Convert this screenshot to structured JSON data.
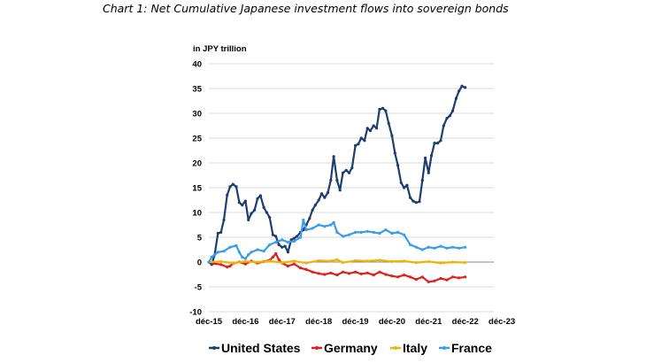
{
  "title": "Chart 1: Net Cumulative Japanese investment flows into sovereign bonds",
  "chart_data": {
    "type": "line",
    "title": "Chart 1: Net Cumulative Japanese investment flows into sovereign bonds",
    "ylabel": "in JPY trillion",
    "xlabel": "",
    "ylim": [
      -10,
      40
    ],
    "yticks": [
      -10,
      -5,
      0,
      5,
      10,
      15,
      20,
      25,
      30,
      35,
      40
    ],
    "xlim": [
      2015.92,
      2023.7
    ],
    "xticks": [
      {
        "x": 2015.92,
        "label": "déc-15"
      },
      {
        "x": 2016.92,
        "label": "déc-16"
      },
      {
        "x": 2017.92,
        "label": "déc-17"
      },
      {
        "x": 2018.92,
        "label": "déc-18"
      },
      {
        "x": 2019.92,
        "label": "déc-19"
      },
      {
        "x": 2020.92,
        "label": "déc-20"
      },
      {
        "x": 2021.92,
        "label": "déc-21"
      },
      {
        "x": 2022.92,
        "label": "déc-22"
      },
      {
        "x": 2023.92,
        "label": "déc-23"
      }
    ],
    "grid": "horizontal",
    "legend_position": "bottom",
    "series": [
      {
        "name": "United States",
        "color": "#1f3d6e",
        "points": [
          [
            2015.92,
            0
          ],
          [
            2016.0,
            -0.5
          ],
          [
            2016.08,
            1.5
          ],
          [
            2016.17,
            5.8
          ],
          [
            2016.25,
            6.0
          ],
          [
            2016.33,
            8.5
          ],
          [
            2016.42,
            13.5
          ],
          [
            2016.5,
            15.2
          ],
          [
            2016.58,
            15.7
          ],
          [
            2016.67,
            15.2
          ],
          [
            2016.75,
            12.0
          ],
          [
            2016.83,
            11.5
          ],
          [
            2016.92,
            12.3
          ],
          [
            2017.0,
            8.5
          ],
          [
            2017.08,
            9.8
          ],
          [
            2017.17,
            10.5
          ],
          [
            2017.25,
            12.8
          ],
          [
            2017.33,
            13.4
          ],
          [
            2017.42,
            11.0
          ],
          [
            2017.5,
            10.0
          ],
          [
            2017.58,
            9.0
          ],
          [
            2017.67,
            5.5
          ],
          [
            2017.75,
            5.2
          ],
          [
            2017.83,
            3.5
          ],
          [
            2017.92,
            3.0
          ],
          [
            2018.0,
            3.2
          ],
          [
            2018.08,
            2.0
          ],
          [
            2018.17,
            4.5
          ],
          [
            2018.25,
            4.8
          ],
          [
            2018.33,
            5.2
          ],
          [
            2018.42,
            6.0
          ],
          [
            2018.5,
            6.5
          ],
          [
            2018.58,
            7.5
          ],
          [
            2018.67,
            8.8
          ],
          [
            2018.75,
            10.5
          ],
          [
            2018.83,
            11.5
          ],
          [
            2018.92,
            12.5
          ],
          [
            2019.0,
            13.8
          ],
          [
            2019.08,
            13.0
          ],
          [
            2019.17,
            14.0
          ],
          [
            2019.25,
            16.5
          ],
          [
            2019.33,
            21.3
          ],
          [
            2019.42,
            16.5
          ],
          [
            2019.5,
            14.5
          ],
          [
            2019.58,
            18.0
          ],
          [
            2019.67,
            18.5
          ],
          [
            2019.75,
            18.0
          ],
          [
            2019.83,
            19.0
          ],
          [
            2019.92,
            23.5
          ],
          [
            2020.0,
            23.8
          ],
          [
            2020.08,
            25.0
          ],
          [
            2020.17,
            24.5
          ],
          [
            2020.25,
            27.0
          ],
          [
            2020.33,
            26.5
          ],
          [
            2020.42,
            27.5
          ],
          [
            2020.5,
            27.0
          ],
          [
            2020.58,
            30.8
          ],
          [
            2020.67,
            31.0
          ],
          [
            2020.75,
            30.5
          ],
          [
            2020.83,
            28.0
          ],
          [
            2020.92,
            25.5
          ],
          [
            2021.0,
            22.0
          ],
          [
            2021.08,
            19.5
          ],
          [
            2021.17,
            16.0
          ],
          [
            2021.25,
            15.0
          ],
          [
            2021.33,
            15.5
          ],
          [
            2021.42,
            13.0
          ],
          [
            2021.5,
            12.3
          ],
          [
            2021.58,
            12.0
          ],
          [
            2021.67,
            12.2
          ],
          [
            2021.75,
            16.5
          ],
          [
            2021.83,
            21.0
          ],
          [
            2021.92,
            18.0
          ],
          [
            2022.0,
            21.5
          ],
          [
            2022.08,
            24.0
          ],
          [
            2022.17,
            24.0
          ],
          [
            2022.25,
            24.5
          ],
          [
            2022.33,
            27.5
          ],
          [
            2022.42,
            29.0
          ],
          [
            2022.5,
            29.5
          ],
          [
            2022.58,
            30.5
          ],
          [
            2022.67,
            33.0
          ],
          [
            2022.75,
            34.5
          ],
          [
            2022.83,
            35.5
          ],
          [
            2022.92,
            35.2
          ]
        ]
      },
      {
        "name": "Germany",
        "color": "#e02020",
        "points": [
          [
            2015.92,
            0
          ],
          [
            2016.08,
            -0.3
          ],
          [
            2016.25,
            -0.5
          ],
          [
            2016.42,
            -1.0
          ],
          [
            2016.5,
            -0.8
          ],
          [
            2016.58,
            -0.3
          ],
          [
            2016.75,
            0.0
          ],
          [
            2016.92,
            -0.4
          ],
          [
            2017.08,
            0.2
          ],
          [
            2017.25,
            -0.2
          ],
          [
            2017.42,
            0.1
          ],
          [
            2017.58,
            0.4
          ],
          [
            2017.67,
            1.0
          ],
          [
            2017.75,
            1.7
          ],
          [
            2017.83,
            0.5
          ],
          [
            2017.92,
            -0.2
          ],
          [
            2018.08,
            -0.8
          ],
          [
            2018.25,
            -0.4
          ],
          [
            2018.42,
            -1.2
          ],
          [
            2018.58,
            -1.5
          ],
          [
            2018.75,
            -2.0
          ],
          [
            2018.92,
            -2.3
          ],
          [
            2019.08,
            -2.5
          ],
          [
            2019.25,
            -2.2
          ],
          [
            2019.42,
            -2.6
          ],
          [
            2019.58,
            -2.0
          ],
          [
            2019.75,
            -2.3
          ],
          [
            2019.92,
            -2.0
          ],
          [
            2020.08,
            -2.4
          ],
          [
            2020.25,
            -2.2
          ],
          [
            2020.42,
            -2.6
          ],
          [
            2020.58,
            -2.0
          ],
          [
            2020.75,
            -2.5
          ],
          [
            2020.92,
            -2.8
          ],
          [
            2021.08,
            -3.0
          ],
          [
            2021.25,
            -2.6
          ],
          [
            2021.42,
            -3.0
          ],
          [
            2021.58,
            -3.5
          ],
          [
            2021.75,
            -3.0
          ],
          [
            2021.92,
            -4.0
          ],
          [
            2022.08,
            -3.8
          ],
          [
            2022.25,
            -3.3
          ],
          [
            2022.42,
            -3.6
          ],
          [
            2022.58,
            -3.0
          ],
          [
            2022.75,
            -3.2
          ],
          [
            2022.92,
            -3.0
          ]
        ]
      },
      {
        "name": "Italy",
        "color": "#f0b400",
        "points": [
          [
            2015.92,
            0
          ],
          [
            2016.25,
            0.1
          ],
          [
            2016.58,
            -0.2
          ],
          [
            2016.92,
            0.1
          ],
          [
            2017.25,
            0.0
          ],
          [
            2017.58,
            0.2
          ],
          [
            2017.92,
            -0.1
          ],
          [
            2018.25,
            0.2
          ],
          [
            2018.58,
            -0.2
          ],
          [
            2018.92,
            0.3
          ],
          [
            2019.25,
            0.2
          ],
          [
            2019.42,
            0.5
          ],
          [
            2019.58,
            -0.1
          ],
          [
            2019.92,
            0.3
          ],
          [
            2020.25,
            0.2
          ],
          [
            2020.58,
            0.4
          ],
          [
            2020.92,
            0.1
          ],
          [
            2021.25,
            0.2
          ],
          [
            2021.58,
            -0.1
          ],
          [
            2021.92,
            0.1
          ],
          [
            2022.25,
            -0.2
          ],
          [
            2022.58,
            0.0
          ],
          [
            2022.92,
            -0.1
          ]
        ]
      },
      {
        "name": "France",
        "color": "#3b9de8",
        "points": [
          [
            2015.92,
            0
          ],
          [
            2016.0,
            1.0
          ],
          [
            2016.08,
            1.5
          ],
          [
            2016.17,
            2.0
          ],
          [
            2016.33,
            2.2
          ],
          [
            2016.5,
            3.0
          ],
          [
            2016.67,
            3.3
          ],
          [
            2016.75,
            2.0
          ],
          [
            2016.83,
            1.0
          ],
          [
            2016.92,
            0.7
          ],
          [
            2017.0,
            1.5
          ],
          [
            2017.08,
            2.0
          ],
          [
            2017.25,
            2.5
          ],
          [
            2017.42,
            2.2
          ],
          [
            2017.58,
            3.5
          ],
          [
            2017.75,
            4.0
          ],
          [
            2017.92,
            4.5
          ],
          [
            2018.08,
            4.0
          ],
          [
            2018.25,
            4.2
          ],
          [
            2018.42,
            5.0
          ],
          [
            2018.5,
            8.5
          ],
          [
            2018.58,
            6.5
          ],
          [
            2018.75,
            6.8
          ],
          [
            2018.92,
            7.5
          ],
          [
            2019.08,
            7.2
          ],
          [
            2019.25,
            7.5
          ],
          [
            2019.33,
            8.0
          ],
          [
            2019.42,
            6.0
          ],
          [
            2019.58,
            5.2
          ],
          [
            2019.75,
            5.5
          ],
          [
            2019.92,
            6.0
          ],
          [
            2020.08,
            6.0
          ],
          [
            2020.25,
            6.2
          ],
          [
            2020.42,
            6.0
          ],
          [
            2020.58,
            5.8
          ],
          [
            2020.75,
            6.5
          ],
          [
            2020.92,
            5.8
          ],
          [
            2021.08,
            6.0
          ],
          [
            2021.25,
            5.5
          ],
          [
            2021.42,
            3.5
          ],
          [
            2021.58,
            3.0
          ],
          [
            2021.75,
            2.5
          ],
          [
            2021.92,
            3.0
          ],
          [
            2022.08,
            2.8
          ],
          [
            2022.25,
            3.2
          ],
          [
            2022.42,
            2.8
          ],
          [
            2022.58,
            3.0
          ],
          [
            2022.75,
            2.8
          ],
          [
            2022.92,
            3.0
          ]
        ]
      }
    ]
  }
}
